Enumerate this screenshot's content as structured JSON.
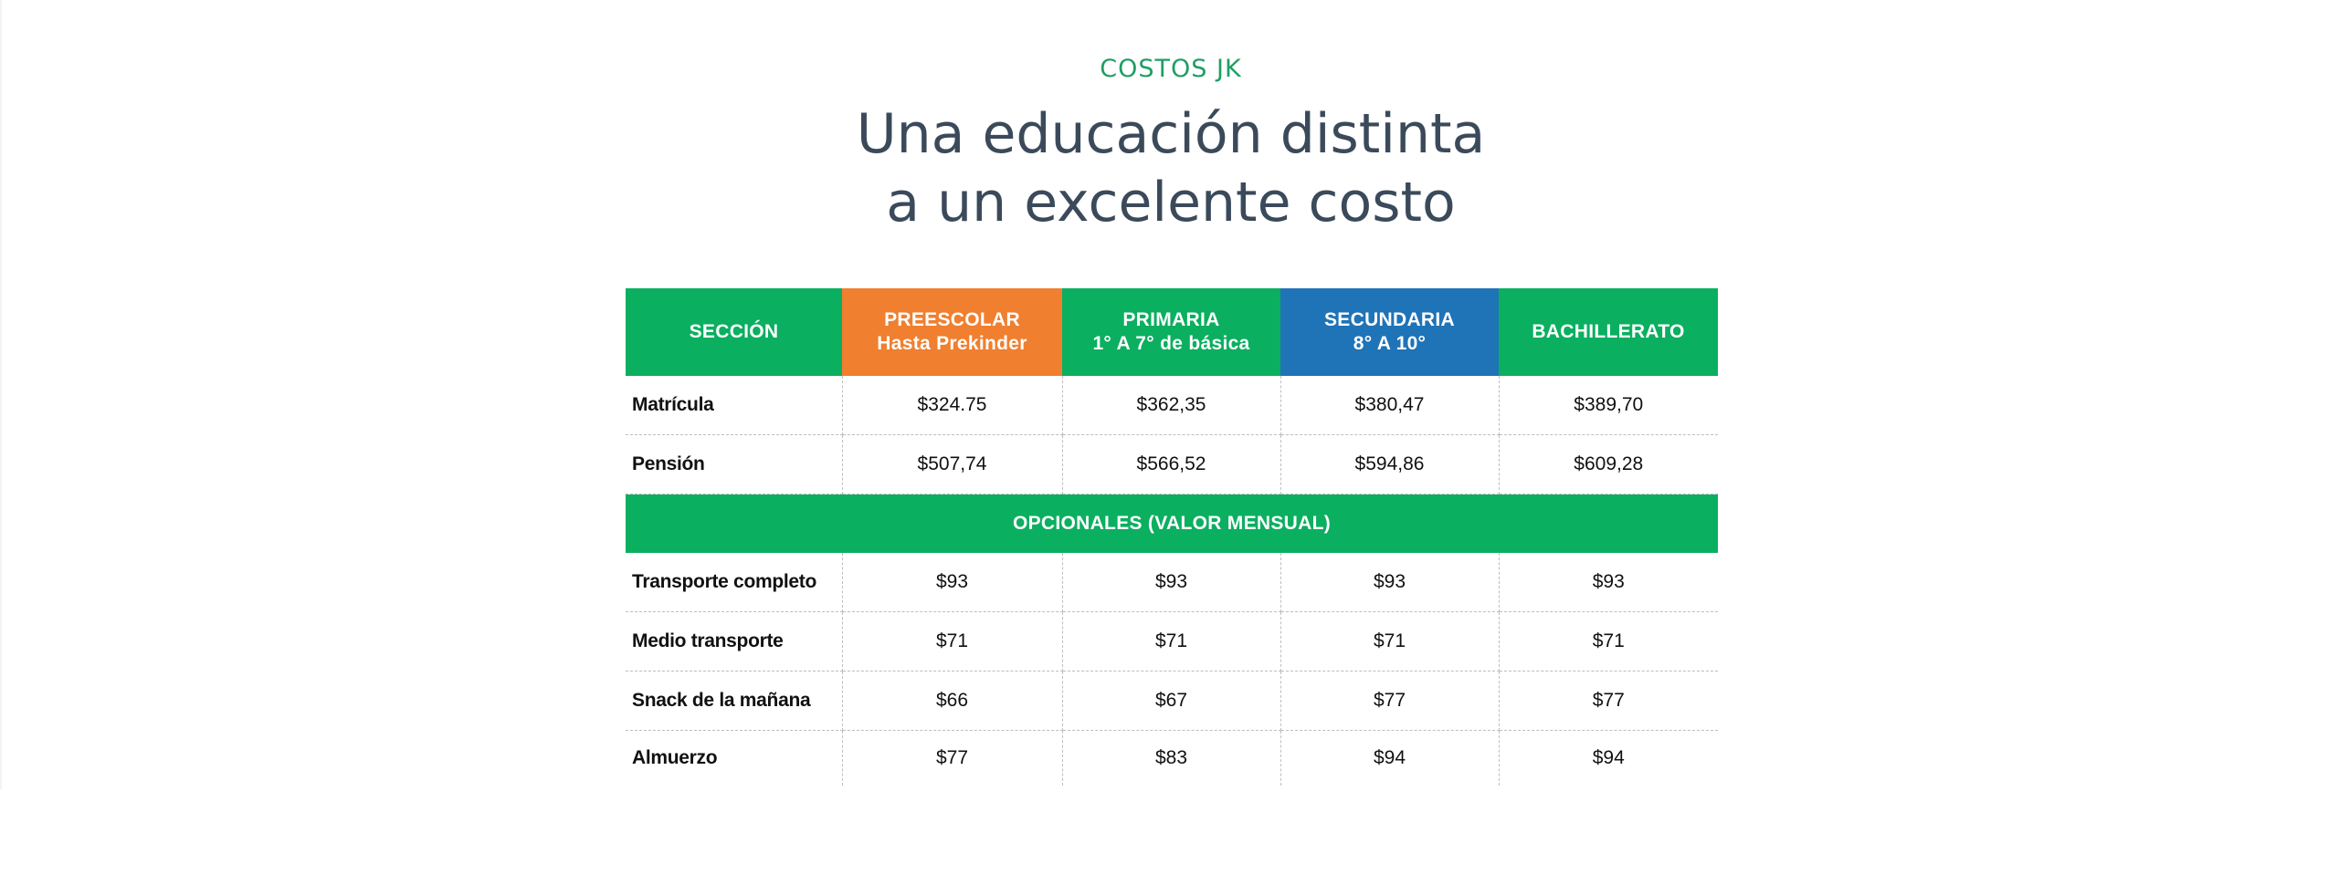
{
  "header": {
    "eyebrow": "COSTOS JK",
    "headline_line1": "Una educación distinta",
    "headline_line2": "a un excelente costo"
  },
  "colors": {
    "green": "#0aaf60",
    "orange": "#f07f2f",
    "blue": "#1f73b7",
    "eyebrow_green": "#1e9e63",
    "headline_gray": "#3b4a5a"
  },
  "table": {
    "columns": [
      {
        "line1": "SECCIÓN",
        "line2": "",
        "color": "#0aaf60"
      },
      {
        "line1": "PREESCOLAR",
        "line2": "Hasta Prekinder",
        "color": "#f07f2f"
      },
      {
        "line1": "PRIMARIA",
        "line2": "1° A 7° de básica",
        "color": "#0aaf60"
      },
      {
        "line1": "SECUNDARIA",
        "line2": "8° A 10°",
        "color": "#1f73b7"
      },
      {
        "line1": "BACHILLERATO",
        "line2": "",
        "color": "#0aaf60"
      }
    ],
    "rows": [
      {
        "label": "Matrícula",
        "values": [
          "$324.75",
          "$362,35",
          "$380,47",
          "$389,70"
        ]
      },
      {
        "label": "Pensión",
        "values": [
          "$507,74",
          "$566,52",
          "$594,86",
          "$609,28"
        ]
      }
    ],
    "optional_header": "OPCIONALES (VALOR MENSUAL)",
    "optional_rows": [
      {
        "label": "Transporte completo",
        "values": [
          "$93",
          "$93",
          "$93",
          "$93"
        ]
      },
      {
        "label": "Medio transporte",
        "values": [
          "$71",
          "$71",
          "$71",
          "$71"
        ]
      },
      {
        "label": "Snack de la mañana",
        "values": [
          "$66",
          "$67",
          "$77",
          "$77"
        ]
      },
      {
        "label": "Almuerzo",
        "values": [
          "$77",
          "$83",
          "$94",
          "$94"
        ]
      }
    ]
  }
}
